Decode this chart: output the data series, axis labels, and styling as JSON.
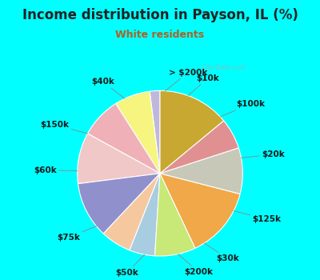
{
  "title": "Income distribution in Payson, IL (%)",
  "subtitle": "White residents",
  "background_color": "#00FFFF",
  "chart_bg_color": "#e0f2ee",
  "labels": [
    "> $200k",
    "$10k",
    "$100k",
    "$20k",
    "$125k",
    "$30k",
    "$200k",
    "$50k",
    "$75k",
    "$60k",
    "$150k",
    "$40k"
  ],
  "values": [
    2,
    7,
    8,
    10,
    11,
    6,
    5,
    8,
    14,
    9,
    6,
    14
  ],
  "colors": [
    "#c0b8dc",
    "#f5f580",
    "#f0b0b8",
    "#f0c8c8",
    "#9090cc",
    "#f5c8a0",
    "#a8cce0",
    "#c8e878",
    "#f0a848",
    "#c8c8b8",
    "#e09090",
    "#c8a830"
  ],
  "title_color": "#222222",
  "subtitle_color": "#b06020",
  "title_fontsize": 12,
  "subtitle_fontsize": 9,
  "label_fontsize": 7.5
}
